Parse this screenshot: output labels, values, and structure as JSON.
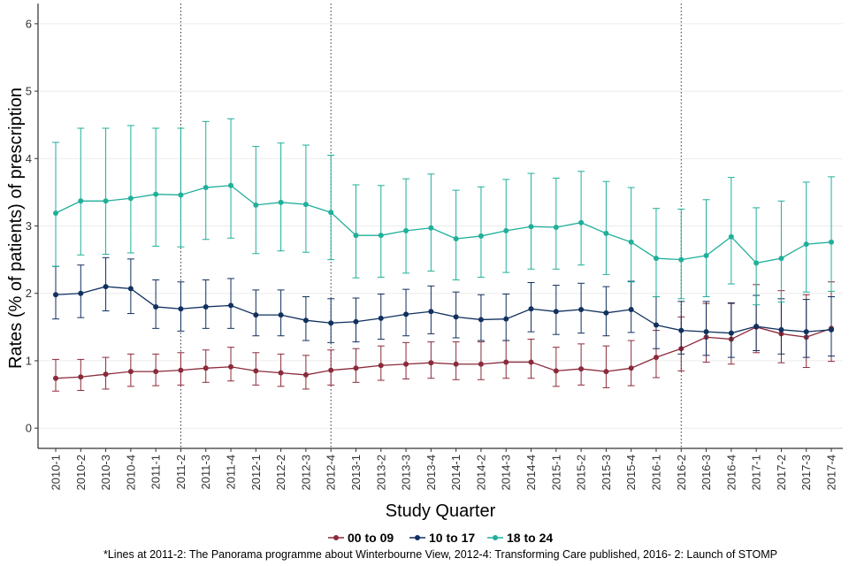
{
  "chart_data": {
    "type": "line",
    "xlabel": "Study Quarter",
    "ylabel": "Rates (% of patients) of prescription",
    "ylim": [
      -0.3,
      6.3
    ],
    "yticks": [
      0,
      1,
      2,
      3,
      4,
      5,
      6
    ],
    "grid": true,
    "legend_position": "bottom",
    "categories": [
      "2010-1",
      "2010-2",
      "2010-3",
      "2010-4",
      "2011-1",
      "2011-2",
      "2011-3",
      "2011-4",
      "2012-1",
      "2012-2",
      "2012-3",
      "2012-4",
      "2013-1",
      "2013-2",
      "2013-3",
      "2013-4",
      "2014-1",
      "2014-2",
      "2014-3",
      "2014-4",
      "2015-1",
      "2015-2",
      "2015-3",
      "2015-4",
      "2016-1",
      "2016-2",
      "2016-3",
      "2016-4",
      "2017-1",
      "2017-2",
      "2017-3",
      "2017-4"
    ],
    "vlines": [
      "2011-2",
      "2012-4",
      "2016-2"
    ],
    "series": [
      {
        "name": "00 to 09",
        "color": "#8B2A3A",
        "values": [
          0.74,
          0.76,
          0.8,
          0.84,
          0.84,
          0.86,
          0.89,
          0.91,
          0.85,
          0.82,
          0.79,
          0.86,
          0.89,
          0.93,
          0.95,
          0.97,
          0.95,
          0.95,
          0.98,
          0.98,
          0.85,
          0.88,
          0.84,
          0.89,
          1.05,
          1.18,
          1.35,
          1.32,
          1.5,
          1.4,
          1.35,
          1.48
        ],
        "lower": [
          0.55,
          0.56,
          0.58,
          0.62,
          0.63,
          0.64,
          0.68,
          0.7,
          0.64,
          0.62,
          0.58,
          0.64,
          0.68,
          0.71,
          0.73,
          0.74,
          0.72,
          0.72,
          0.74,
          0.74,
          0.62,
          0.64,
          0.6,
          0.63,
          0.75,
          0.85,
          0.98,
          0.95,
          1.12,
          0.97,
          0.9,
          0.99
        ],
        "upper": [
          1.02,
          1.02,
          1.05,
          1.1,
          1.1,
          1.12,
          1.16,
          1.2,
          1.12,
          1.1,
          1.08,
          1.16,
          1.18,
          1.22,
          1.27,
          1.28,
          1.28,
          1.28,
          1.3,
          1.32,
          1.2,
          1.25,
          1.22,
          1.3,
          1.45,
          1.65,
          1.85,
          1.85,
          2.13,
          2.04,
          1.98,
          2.17
        ]
      },
      {
        "name": "10 to 17",
        "color": "#10305E",
        "values": [
          1.98,
          2.0,
          2.1,
          2.07,
          1.8,
          1.77,
          1.8,
          1.82,
          1.68,
          1.68,
          1.6,
          1.56,
          1.58,
          1.63,
          1.69,
          1.73,
          1.65,
          1.61,
          1.62,
          1.77,
          1.73,
          1.76,
          1.71,
          1.76,
          1.53,
          1.45,
          1.43,
          1.41,
          1.51,
          1.46,
          1.43,
          1.46
        ],
        "lower": [
          1.62,
          1.64,
          1.74,
          1.7,
          1.48,
          1.44,
          1.48,
          1.48,
          1.37,
          1.37,
          1.3,
          1.27,
          1.28,
          1.32,
          1.37,
          1.4,
          1.34,
          1.3,
          1.3,
          1.43,
          1.39,
          1.41,
          1.37,
          1.42,
          1.18,
          1.1,
          1.08,
          1.05,
          1.15,
          1.1,
          1.05,
          1.07
        ],
        "upper": [
          2.4,
          2.42,
          2.53,
          2.51,
          2.2,
          2.17,
          2.2,
          2.22,
          2.05,
          2.05,
          1.95,
          1.92,
          1.93,
          1.99,
          2.06,
          2.11,
          2.02,
          1.98,
          1.99,
          2.16,
          2.12,
          2.15,
          2.1,
          2.18,
          1.95,
          1.88,
          1.88,
          1.86,
          1.97,
          1.92,
          1.91,
          1.95
        ]
      },
      {
        "name": "18 to 24",
        "color": "#1FAF9A",
        "values": [
          3.19,
          3.37,
          3.37,
          3.41,
          3.47,
          3.46,
          3.57,
          3.6,
          3.31,
          3.35,
          3.32,
          3.2,
          2.86,
          2.86,
          2.93,
          2.97,
          2.81,
          2.85,
          2.93,
          2.99,
          2.98,
          3.05,
          2.89,
          2.76,
          2.52,
          2.5,
          2.56,
          2.84,
          2.45,
          2.52,
          2.73,
          2.76
        ],
        "lower": [
          2.4,
          2.57,
          2.58,
          2.6,
          2.7,
          2.69,
          2.8,
          2.82,
          2.59,
          2.63,
          2.61,
          2.5,
          2.23,
          2.24,
          2.3,
          2.33,
          2.2,
          2.24,
          2.31,
          2.36,
          2.36,
          2.42,
          2.28,
          2.17,
          1.95,
          1.92,
          1.95,
          2.14,
          1.83,
          1.87,
          2.02,
          2.03
        ],
        "upper": [
          4.24,
          4.45,
          4.45,
          4.49,
          4.45,
          4.45,
          4.55,
          4.59,
          4.18,
          4.23,
          4.2,
          4.05,
          3.61,
          3.6,
          3.7,
          3.77,
          3.53,
          3.58,
          3.69,
          3.78,
          3.71,
          3.81,
          3.66,
          3.57,
          3.26,
          3.25,
          3.39,
          3.72,
          3.27,
          3.37,
          3.65,
          3.73
        ]
      }
    ],
    "footnote": "*Lines at 2011-2: The Panorama programme about Winterbourne View, 2012-4: Transforming Care published, 2016- 2: Launch of STOMP"
  }
}
